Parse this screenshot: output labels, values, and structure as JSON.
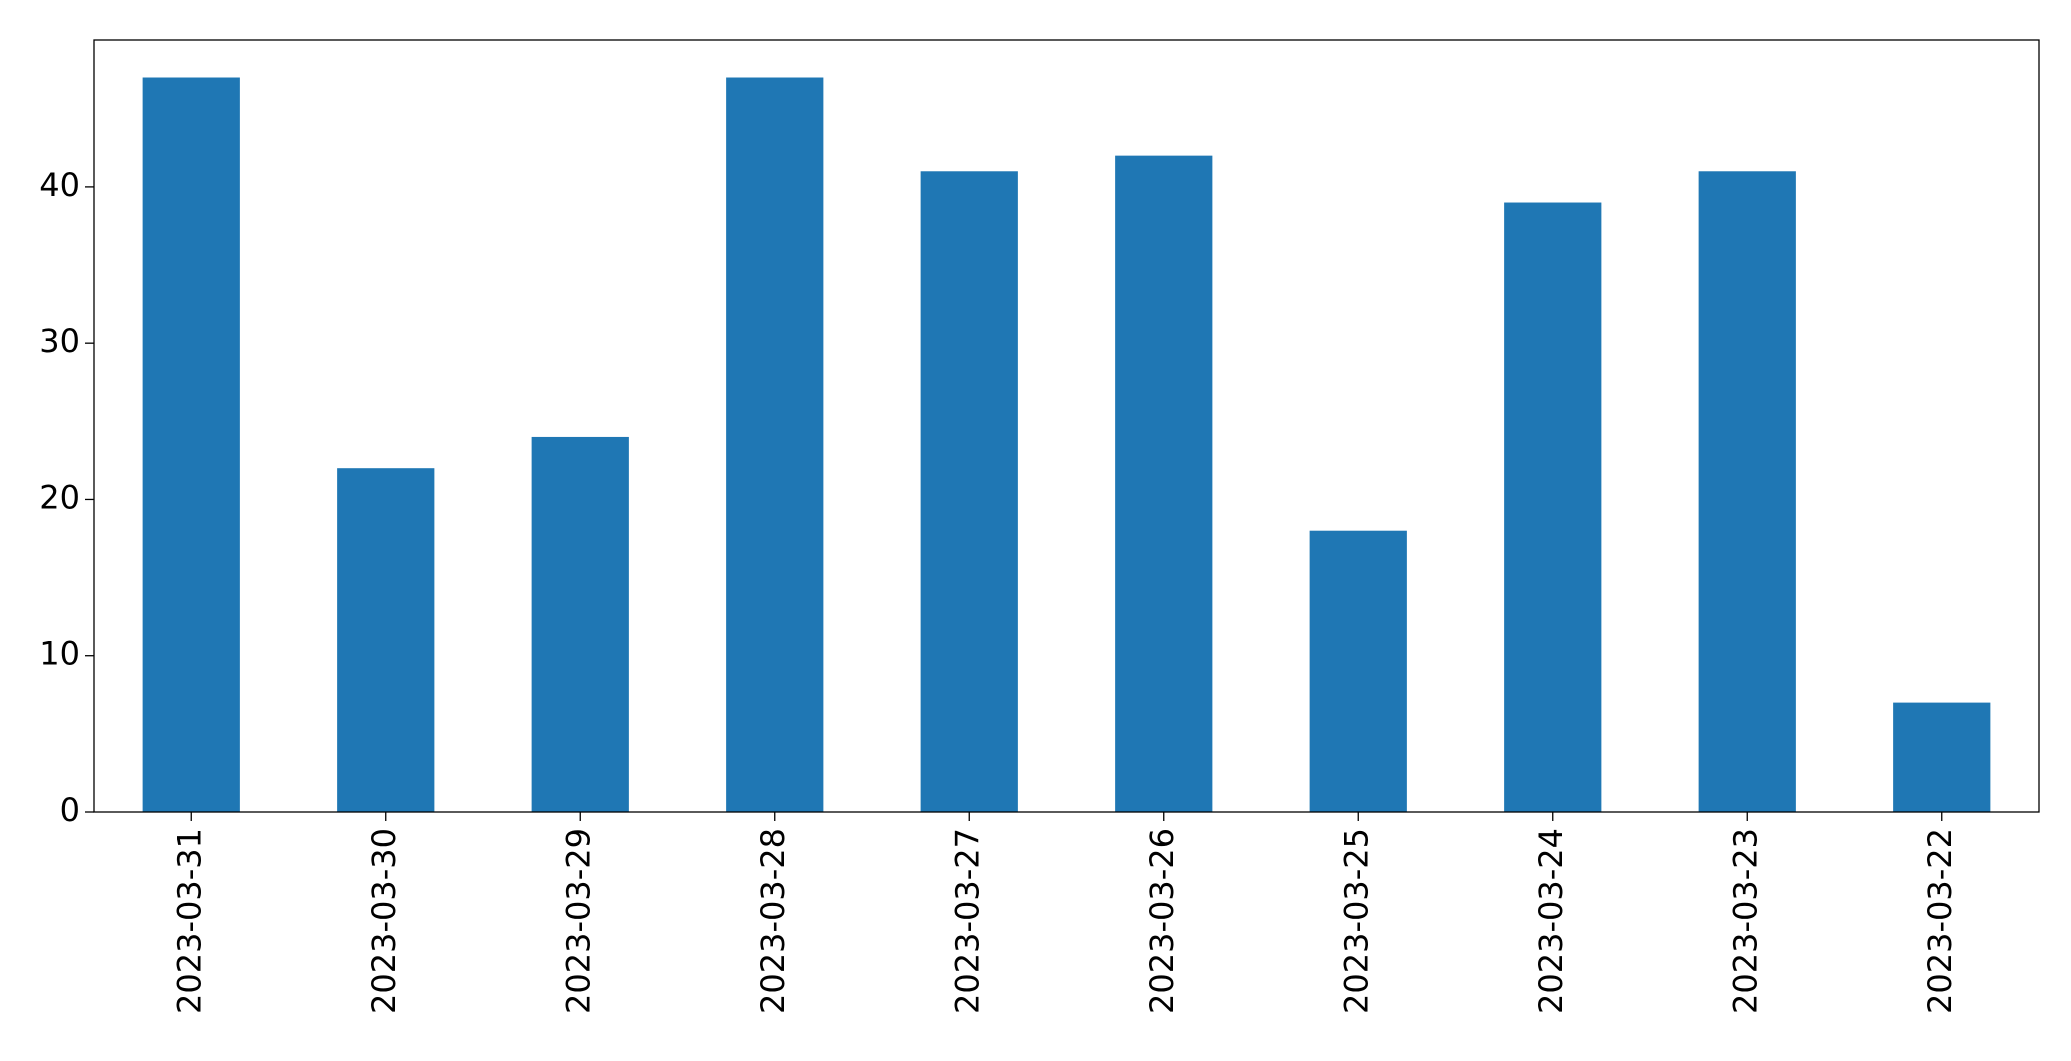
{
  "chart_data": {
    "type": "bar",
    "categories": [
      "2023-03-31",
      "2023-03-30",
      "2023-03-29",
      "2023-03-28",
      "2023-03-27",
      "2023-03-26",
      "2023-03-25",
      "2023-03-24",
      "2023-03-23",
      "2023-03-22"
    ],
    "values": [
      47,
      22,
      24,
      47,
      41,
      42,
      18,
      39,
      41,
      7
    ],
    "color": "#1f77b4",
    "ylim": [
      0,
      49.4
    ],
    "yticks": [
      0,
      10,
      20,
      30,
      40
    ],
    "grid": false
  }
}
